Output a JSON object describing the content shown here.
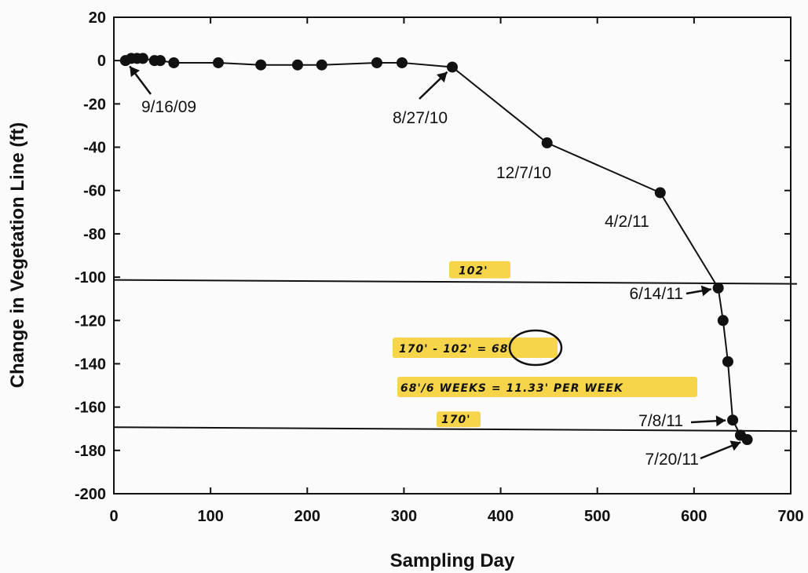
{
  "chart_data": {
    "type": "scatter",
    "title": "",
    "xlabel": "Sampling Day",
    "ylabel": "Change in Vegetation Line (ft)",
    "xlim": [
      0,
      700
    ],
    "ylim": [
      -200,
      20
    ],
    "xticks": [
      "0",
      "100",
      "200",
      "300",
      "400",
      "500",
      "600",
      "700"
    ],
    "yticks": [
      "20",
      "0",
      "-20",
      "-40",
      "-60",
      "-80",
      "-100",
      "-120",
      "-140",
      "-160",
      "-180",
      "-200"
    ],
    "grid": false,
    "series": [
      {
        "points": [
          {
            "x": 12,
            "y": 0
          },
          {
            "x": 18,
            "y": 1
          },
          {
            "x": 24,
            "y": 1
          },
          {
            "x": 30,
            "y": 1
          },
          {
            "x": 42,
            "y": 0
          },
          {
            "x": 48,
            "y": 0
          },
          {
            "x": 62,
            "y": -1
          },
          {
            "x": 108,
            "y": -1
          },
          {
            "x": 152,
            "y": -2
          },
          {
            "x": 190,
            "y": -2
          },
          {
            "x": 215,
            "y": -2
          },
          {
            "x": 272,
            "y": -1
          },
          {
            "x": 298,
            "y": -1
          },
          {
            "x": 350,
            "y": -3
          },
          {
            "x": 448,
            "y": -38
          },
          {
            "x": 565,
            "y": -61
          },
          {
            "x": 625,
            "y": -105
          },
          {
            "x": 630,
            "y": -120
          },
          {
            "x": 635,
            "y": -139
          },
          {
            "x": 640,
            "y": -166
          },
          {
            "x": 648,
            "y": -173
          },
          {
            "x": 655,
            "y": -175
          }
        ],
        "line_from_index": 13
      }
    ],
    "reference_lines": [
      {
        "y": -102,
        "label": "102'"
      },
      {
        "y": -170,
        "label": "170'"
      }
    ],
    "date_annotations": [
      {
        "label": "9/16/09",
        "x": 12,
        "y": 0
      },
      {
        "label": "8/27/10",
        "x": 350,
        "y": -3
      },
      {
        "label": "12/7/10",
        "x": 448,
        "y": -38
      },
      {
        "label": "4/2/11",
        "x": 565,
        "y": -61
      },
      {
        "label": "6/14/11",
        "x": 625,
        "y": -105
      },
      {
        "label": "7/8/11",
        "x": 640,
        "y": -166
      },
      {
        "label": "7/20/11",
        "x": 655,
        "y": -175
      }
    ],
    "handwritten_notes": [
      "170' - 102' = 68'",
      "68'/6 WEEKS = 11.33' PER WEEK"
    ],
    "highlight_color": "#f5c400",
    "ink_color": "#111111"
  }
}
